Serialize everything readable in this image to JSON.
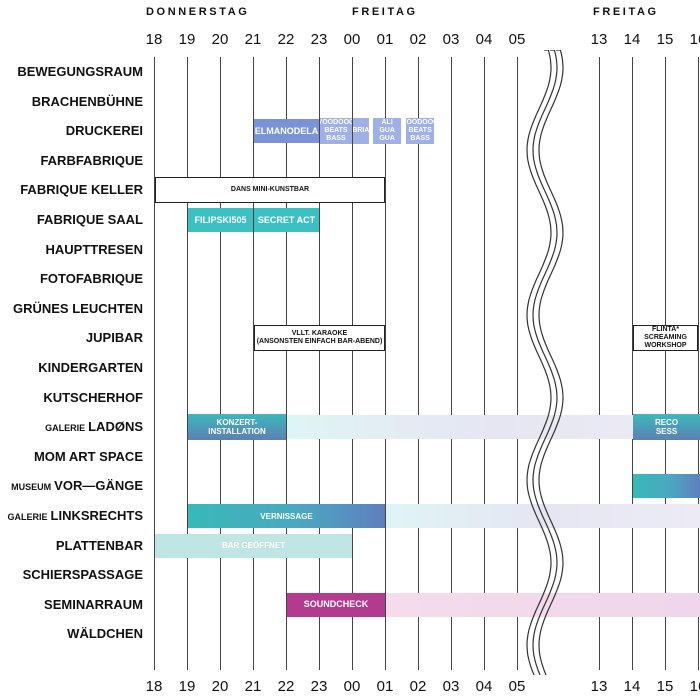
{
  "days": {
    "day1": "DONNERSTAG",
    "day2": "FREITAG",
    "day3": "FREITAG"
  },
  "hours_top": [
    "18",
    "19",
    "20",
    "21",
    "22",
    "23",
    "00",
    "01",
    "02",
    "03",
    "04",
    "05",
    "13",
    "14",
    "15",
    "16"
  ],
  "hours_bottom": [
    "18",
    "19",
    "20",
    "21",
    "22",
    "23",
    "00",
    "01",
    "02",
    "03",
    "04",
    "05",
    "13",
    "14",
    "15",
    "16"
  ],
  "rooms": [
    {
      "prefix": "",
      "name": "BEWEGUNGSRAUM"
    },
    {
      "prefix": "",
      "name": "BRACHENBÜHNE"
    },
    {
      "prefix": "",
      "name": "DRUCKEREI"
    },
    {
      "prefix": "",
      "name": "FARBFABRIQUE"
    },
    {
      "prefix": "",
      "name": "FABRIQUE KELLER"
    },
    {
      "prefix": "",
      "name": "FABRIQUE SAAL"
    },
    {
      "prefix": "",
      "name": "HAUPTTRESEN"
    },
    {
      "prefix": "",
      "name": "FOTOFABRIQUE"
    },
    {
      "prefix": "",
      "name": "GRÜNES LEUCHTEN"
    },
    {
      "prefix": "",
      "name": "JUPIBAR"
    },
    {
      "prefix": "",
      "name": "KINDERGARTEN"
    },
    {
      "prefix": "",
      "name": "KUTSCHERHOF"
    },
    {
      "prefix": "GALERIE",
      "name": "LADØNS"
    },
    {
      "prefix": "",
      "name": "MOM ART SPACE"
    },
    {
      "prefix": "MUSEUM",
      "name": "VOR—GÄNGE"
    },
    {
      "prefix": "GALERIE",
      "name": "LINKSRECHTS"
    },
    {
      "prefix": "",
      "name": "PLATTENBAR"
    },
    {
      "prefix": "",
      "name": "SCHIERSPASSAGE"
    },
    {
      "prefix": "",
      "name": "SEMINARRAUM"
    },
    {
      "prefix": "",
      "name": "WÄLDCHEN"
    }
  ],
  "events": [
    {
      "room": 2,
      "start": 21,
      "end": 23,
      "label": "ELMANODELA",
      "style": "ev-blue"
    },
    {
      "room": 2,
      "start": 23,
      "end": 24,
      "label": "VOODOOO\nBEATS\nBASS",
      "style": "ev-blue-light"
    },
    {
      "room": 2,
      "start": 24,
      "end": 24.5,
      "label": "BRIA",
      "style": "ev-blue-light"
    },
    {
      "room": 2,
      "start": 24.6,
      "end": 25.5,
      "label": "ALI\nGUA\nGUA",
      "style": "ev-blue-light"
    },
    {
      "room": 2,
      "start": 25.6,
      "end": 26.5,
      "label": "VOODOOO\nBEATS\nBASS",
      "style": "ev-blue-light"
    },
    {
      "room": 4,
      "start": 18,
      "end": 25,
      "label": "DANS MINI-KUNSTBAR",
      "style": "ev-outline"
    },
    {
      "room": 5,
      "start": 19,
      "end": 21,
      "label": "FILIPSKI505",
      "style": "ev-teal"
    },
    {
      "room": 5,
      "start": 21,
      "end": 23,
      "label": "SECRET ACT",
      "style": "ev-teal"
    },
    {
      "room": 9,
      "start": 21,
      "end": 25,
      "label": "VLLT. KARAOKE\n(ANSONSTEN EINFACH BAR-ABEND)",
      "style": "ev-outline"
    },
    {
      "room": 9,
      "start": 38,
      "end": 40,
      "label": "FLINTA*\nSCREAMING\nWORKSHOP",
      "style": "ev-outline"
    },
    {
      "room": 12,
      "start": 22,
      "end": 46,
      "label": "",
      "style": "ev-grad-light"
    },
    {
      "room": 12,
      "start": 19,
      "end": 22,
      "label": "KONZERT-\nINSTALLATION",
      "style": "ev-grad-dark"
    },
    {
      "room": 12,
      "start": 38,
      "end": 46,
      "label": "RECO\nSESS",
      "style": "ev-grad-dark"
    },
    {
      "room": 14,
      "start": 38,
      "end": 46,
      "label": "",
      "style": "ev-grad-teal"
    },
    {
      "room": 15,
      "start": 25,
      "end": 46,
      "label": "",
      "style": "ev-grad-light"
    },
    {
      "room": 15,
      "start": 19,
      "end": 25,
      "label": "VERNISSAGE",
      "style": "ev-grad-teal"
    },
    {
      "room": 16,
      "start": 18,
      "end": 24,
      "label": "BAR GEÖFFNET",
      "style": "ev-mint"
    },
    {
      "room": 18,
      "start": 25,
      "end": 46,
      "label": "",
      "style": "ev-grad-pink"
    },
    {
      "room": 18,
      "start": 22,
      "end": 25,
      "label": "SOUNDCHECK",
      "style": "ev-magenta"
    }
  ]
}
